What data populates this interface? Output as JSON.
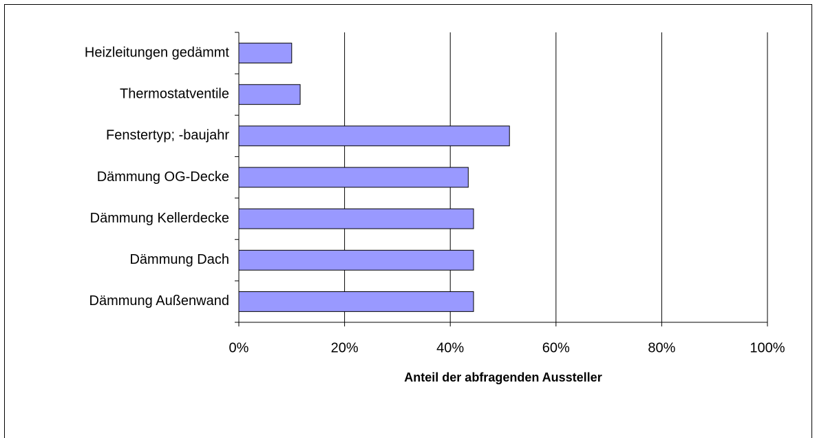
{
  "chart_data": {
    "type": "bar",
    "orientation": "horizontal",
    "categories": [
      "Heizleitungen gedämmt",
      "Thermostatventile",
      "Fenstertyp; -baujahr",
      "Dämmung OG-Decke",
      "Dämmung Kellerdecke",
      "Dämmung Dach",
      "Dämmung Außenwand"
    ],
    "values": [
      10.0,
      11.6,
      51.2,
      43.4,
      44.4,
      44.4,
      44.4
    ],
    "color": "#9999ff",
    "x_label": "Anteil der abfragenden Aussteller",
    "xlim": [
      0,
      100
    ],
    "xticks": [
      {
        "value": 0,
        "label": "0%"
      },
      {
        "value": 20,
        "label": "20%"
      },
      {
        "value": 40,
        "label": "40%"
      },
      {
        "value": 60,
        "label": "60%"
      },
      {
        "value": 80,
        "label": "80%"
      },
      {
        "value": 100,
        "label": "100%"
      }
    ],
    "grid": true
  }
}
